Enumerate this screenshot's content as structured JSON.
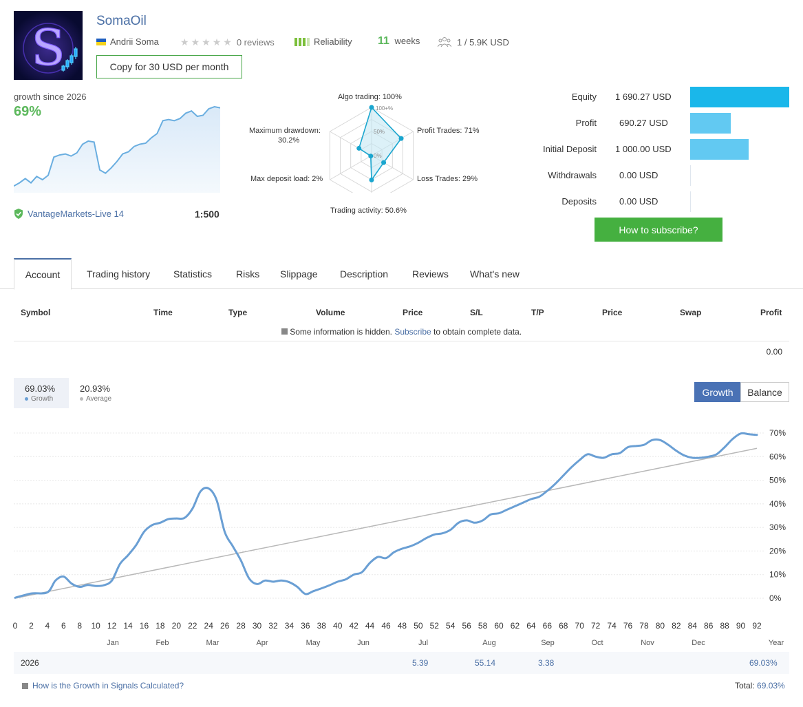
{
  "header": {
    "title": "SomaOil",
    "author": "Andrii Soma",
    "reviews": "0 reviews",
    "reliability": "Reliability",
    "weeks_num": "11",
    "weeks_label": "weeks",
    "subscribers": "1 / 5.9K USD",
    "copy_button": "Copy for 30 USD per month",
    "rating_stars": 0,
    "reliability_bars": 3,
    "flag_colors": [
      "#1f5fbf",
      "#f4d21c"
    ]
  },
  "summary": {
    "growth_label": "growth since 2026",
    "growth_value": "69%",
    "broker": "VantageMarkets-Live 14",
    "leverage": "1:500"
  },
  "radar": {
    "labels": {
      "algo": "Algo trading: 100%",
      "profit": "Profit Trades: 71%",
      "loss": "Loss Trades: 29%",
      "activity": "Trading activity: 50.6%",
      "deposit_load": "Max deposit load: 2%",
      "drawdown1": "Maximum drawdown:",
      "drawdown2": "30.2%"
    },
    "grid_labels": [
      "100+%",
      "50%",
      "0%"
    ],
    "values": [
      100,
      71,
      29,
      50.6,
      2,
      30.2
    ]
  },
  "finance": [
    {
      "label": "Equity",
      "value": "1 690.27 USD",
      "amount": 1690.27,
      "color": "#1ab7ea"
    },
    {
      "label": "Profit",
      "value": "690.27 USD",
      "amount": 690.27,
      "color": "#62c9f2"
    },
    {
      "label": "Initial Deposit",
      "value": "1 000.00 USD",
      "amount": 1000.0,
      "color": "#62c9f2"
    },
    {
      "label": "Withdrawals",
      "value": "0.00 USD",
      "amount": 0,
      "color": "#62c9f2"
    },
    {
      "label": "Deposits",
      "value": "0.00 USD",
      "amount": 0,
      "color": "#62c9f2"
    }
  ],
  "subscribe_button": "How to subscribe?",
  "tabs": [
    "Account",
    "Trading history",
    "Statistics",
    "Risks",
    "Slippage",
    "Description",
    "Reviews",
    "What's new"
  ],
  "table": {
    "headers": [
      "Symbol",
      "Time",
      "Type",
      "Volume",
      "Price",
      "S/L",
      "T/P",
      "Price",
      "Swap",
      "Profit"
    ],
    "hidden_pre": "Some information is hidden.",
    "hidden_link": "Subscribe",
    "hidden_post": "to obtain complete data.",
    "total_profit": "0.00"
  },
  "growth_stats": {
    "growth_value": "69.03%",
    "growth_label": "Growth",
    "average_value": "20.93%",
    "average_label": "Average",
    "btn_growth": "Growth",
    "btn_balance": "Balance"
  },
  "chart_data": {
    "type": "line",
    "y_ticks": [
      "70%",
      "60%",
      "50%",
      "40%",
      "30%",
      "20%",
      "10%",
      "0%"
    ],
    "ylim": [
      0,
      70
    ],
    "x_ticks": [
      "0",
      "2",
      "4",
      "6",
      "8",
      "10",
      "12",
      "14",
      "16",
      "18",
      "20",
      "22",
      "24",
      "26",
      "28",
      "30",
      "32",
      "34",
      "36",
      "38",
      "40",
      "42",
      "44",
      "46",
      "48",
      "50",
      "52",
      "54",
      "56",
      "58",
      "60",
      "62",
      "64",
      "66",
      "68",
      "70",
      "72",
      "74",
      "76",
      "78",
      "80",
      "82",
      "84",
      "86",
      "88",
      "90",
      "92"
    ],
    "xlim": [
      0,
      92
    ],
    "months": [
      "Jan",
      "Feb",
      "Mar",
      "Apr",
      "May",
      "Jun",
      "Jul",
      "Aug",
      "Sep",
      "Oct",
      "Nov",
      "Dec",
      "Year"
    ],
    "series": [
      {
        "name": "Growth",
        "color": "#6a9fd4",
        "x": [
          0,
          2,
          4,
          5,
          6,
          7,
          8,
          9,
          10,
          11,
          12,
          13,
          14,
          15,
          16,
          17,
          18,
          19,
          20,
          21,
          22,
          23,
          24,
          25,
          26,
          27,
          28,
          29,
          30,
          31,
          32,
          33,
          34,
          35,
          36,
          37,
          38,
          39,
          40,
          41,
          42,
          43,
          44,
          45,
          46,
          47,
          48,
          49,
          50,
          51,
          52,
          53,
          54,
          55,
          56,
          57,
          58,
          59,
          60,
          61,
          62,
          63,
          64,
          65,
          66,
          67,
          68,
          69,
          70,
          71,
          72,
          73,
          74,
          75,
          76,
          77,
          78,
          79,
          80,
          81,
          82,
          83,
          84,
          85,
          86,
          87,
          88,
          89,
          90,
          91,
          92
        ],
        "values": [
          0.2,
          2,
          2.5,
          7.5,
          9.2,
          6.2,
          4.8,
          5.6,
          5.2,
          5.5,
          7.5,
          14.5,
          18.2,
          22.5,
          28.2,
          31,
          32,
          33.5,
          33.8,
          34,
          38,
          45.3,
          46.5,
          41.5,
          28,
          22,
          16,
          8.5,
          6,
          7.5,
          7,
          7.5,
          6.8,
          4.8,
          1.8,
          3,
          4.2,
          5.5,
          7,
          8,
          10,
          11,
          15,
          17.5,
          17,
          19.5,
          21,
          22,
          23.5,
          25.5,
          27,
          27.5,
          29,
          32,
          33,
          32,
          33,
          35.5,
          36,
          37.5,
          39,
          40.5,
          42,
          43,
          45.5,
          48.5,
          52,
          55.5,
          58.5,
          61,
          60,
          59.5,
          61,
          61.5,
          64,
          64.5,
          65,
          67,
          67,
          65,
          62.5,
          60.5,
          59.5,
          59.5,
          60,
          61,
          64,
          67.5,
          69.8,
          69.5,
          69.2
        ]
      },
      {
        "name": "Average",
        "color": "#b8b8b8",
        "x": [
          0,
          92
        ],
        "values": [
          0,
          63.5
        ]
      }
    ]
  },
  "mini_chart": {
    "type": "area",
    "values": [
      3,
      6,
      10,
      6,
      12,
      9,
      13,
      30,
      32,
      33,
      31,
      34,
      42,
      45,
      44,
      18,
      15,
      20,
      26,
      33,
      35,
      40,
      42,
      43,
      48,
      52,
      64,
      65,
      64,
      66,
      71,
      73,
      68,
      69,
      75,
      77,
      76
    ]
  },
  "year_row": {
    "year": "2026",
    "values": [
      {
        "month": "Jul",
        "value": "5.39"
      },
      {
        "month": "Aug",
        "value": "55.14"
      },
      {
        "month": "Sep",
        "value": "3.38"
      }
    ],
    "total": "69.03%"
  },
  "footer": {
    "question": "How is the Growth in Signals Calculated?",
    "total_label": "Total:",
    "total_value": "69.03%"
  }
}
